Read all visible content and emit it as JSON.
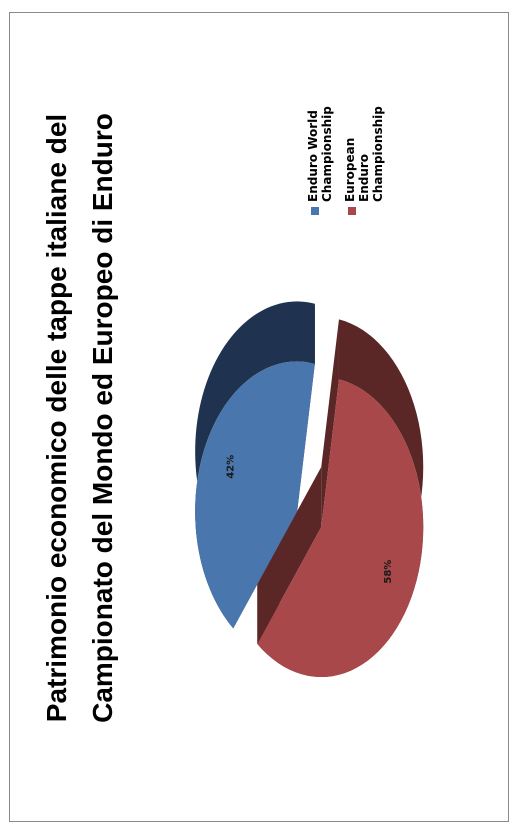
{
  "chart_data": {
    "type": "pie",
    "title": "Patrimonio economico delle tappe italiane del Campionato del Mondo ed Europeo di Enduro",
    "categories": [
      "Enduro World Championship",
      "European Enduro Championship"
    ],
    "values": [
      42,
      58
    ],
    "labels": [
      "42%",
      "58%"
    ],
    "colors": [
      "#4a76ae",
      "#a8484a"
    ],
    "side_colors": [
      "#1f3350",
      "#5a2626"
    ],
    "exploded": true,
    "three_d": true,
    "legend": "right"
  }
}
